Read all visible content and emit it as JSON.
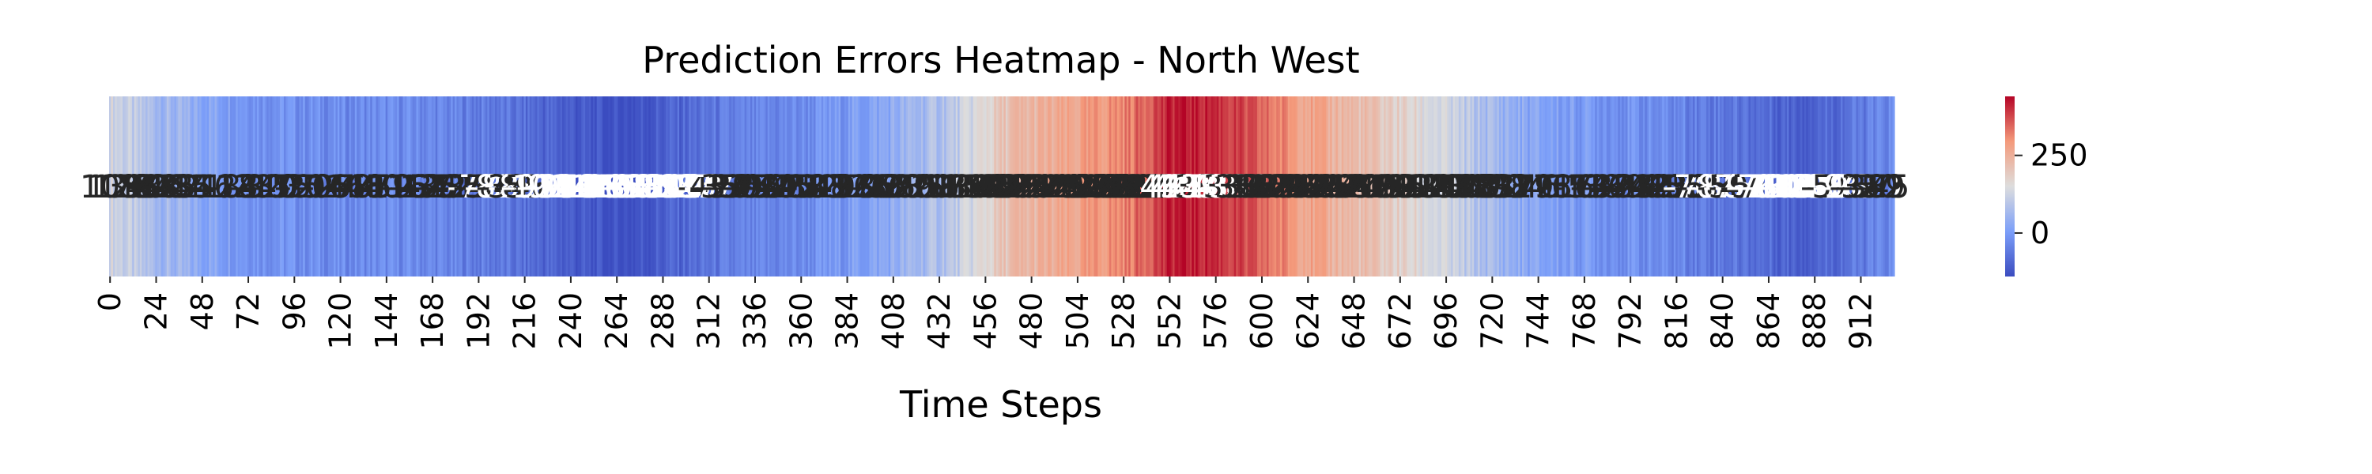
{
  "chart_data": {
    "type": "heatmap",
    "title": "Prediction Errors Heatmap - North West",
    "xlabel": "Time Steps",
    "ylabel": "",
    "n_steps": 930,
    "x_ticks": [
      0,
      24,
      48,
      72,
      96,
      120,
      144,
      168,
      192,
      216,
      240,
      264,
      288,
      312,
      336,
      360,
      384,
      408,
      432,
      456,
      480,
      504,
      528,
      552,
      576,
      600,
      624,
      648,
      672,
      696,
      720,
      744,
      768,
      792,
      816,
      840,
      864,
      888,
      912
    ],
    "colormap": "coolwarm",
    "colorbar": {
      "vmin": -140,
      "vmax": 440,
      "ticks": [
        0,
        250
      ]
    },
    "annotations": "each cell annotated with its value (overlapping, illegible)",
    "profile": [
      [
        0,
        140
      ],
      [
        15,
        90
      ],
      [
        40,
        40
      ],
      [
        80,
        -10
      ],
      [
        120,
        -30
      ],
      [
        160,
        -30
      ],
      [
        200,
        -60
      ],
      [
        240,
        -110
      ],
      [
        262,
        -140
      ],
      [
        285,
        -110
      ],
      [
        320,
        -60
      ],
      [
        360,
        -30
      ],
      [
        400,
        20
      ],
      [
        440,
        100
      ],
      [
        470,
        220
      ],
      [
        500,
        260
      ],
      [
        530,
        320
      ],
      [
        555,
        420
      ],
      [
        575,
        410
      ],
      [
        600,
        340
      ],
      [
        630,
        260
      ],
      [
        660,
        200
      ],
      [
        690,
        140
      ],
      [
        710,
        90
      ],
      [
        740,
        20
      ],
      [
        780,
        -10
      ],
      [
        820,
        -40
      ],
      [
        860,
        -80
      ],
      [
        880,
        -100
      ],
      [
        900,
        -80
      ],
      [
        929,
        -30
      ]
    ]
  }
}
